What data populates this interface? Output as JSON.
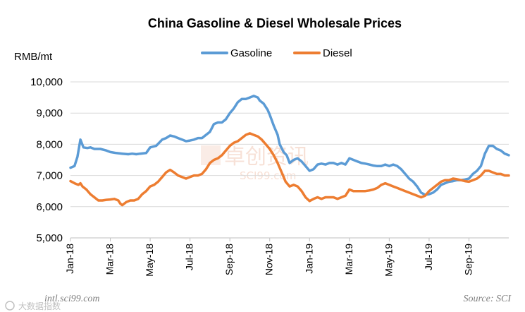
{
  "chart_data": {
    "type": "line",
    "title": "China Gasoline & Diesel Wholesale Prices",
    "ylabel": "RMB/mt",
    "xlabel": "",
    "ylim": [
      5000,
      10000
    ],
    "yticks": [
      "10,000",
      "9,000",
      "8,000",
      "7,000",
      "6,000",
      "5,000"
    ],
    "yticks_values": [
      10000,
      9000,
      8000,
      7000,
      6000,
      5000
    ],
    "x_range": [
      0,
      22
    ],
    "xtick_labels": [
      "Jan-18",
      "Mar-18",
      "May-18",
      "Jul-18",
      "Sep-18",
      "Nov-18",
      "Jan-19",
      "Mar-19",
      "May-19",
      "Jul-19",
      "Sep-19"
    ],
    "xtick_positions": [
      0,
      2,
      4,
      6,
      8,
      10,
      12,
      14,
      16,
      18,
      20
    ],
    "grid": "horizontal",
    "legend_position": "top-center",
    "series": [
      {
        "name": "Gasoline",
        "color": "#5b9bd5",
        "points": [
          [
            0,
            7250
          ],
          [
            0.2,
            7300
          ],
          [
            0.35,
            7600
          ],
          [
            0.5,
            8150
          ],
          [
            0.65,
            7900
          ],
          [
            0.85,
            7880
          ],
          [
            1.0,
            7900
          ],
          [
            1.2,
            7850
          ],
          [
            1.5,
            7850
          ],
          [
            1.8,
            7800
          ],
          [
            2.0,
            7750
          ],
          [
            2.3,
            7720
          ],
          [
            2.6,
            7700
          ],
          [
            2.9,
            7680
          ],
          [
            3.1,
            7700
          ],
          [
            3.3,
            7680
          ],
          [
            3.5,
            7700
          ],
          [
            3.8,
            7720
          ],
          [
            4.0,
            7900
          ],
          [
            4.3,
            7950
          ],
          [
            4.6,
            8150
          ],
          [
            4.8,
            8200
          ],
          [
            5.0,
            8280
          ],
          [
            5.2,
            8250
          ],
          [
            5.4,
            8200
          ],
          [
            5.6,
            8150
          ],
          [
            5.8,
            8100
          ],
          [
            6.0,
            8120
          ],
          [
            6.2,
            8150
          ],
          [
            6.4,
            8200
          ],
          [
            6.6,
            8200
          ],
          [
            6.8,
            8300
          ],
          [
            7.0,
            8400
          ],
          [
            7.2,
            8650
          ],
          [
            7.4,
            8700
          ],
          [
            7.6,
            8700
          ],
          [
            7.8,
            8800
          ],
          [
            8.0,
            9000
          ],
          [
            8.2,
            9150
          ],
          [
            8.4,
            9350
          ],
          [
            8.6,
            9450
          ],
          [
            8.8,
            9450
          ],
          [
            9.0,
            9500
          ],
          [
            9.2,
            9550
          ],
          [
            9.4,
            9500
          ],
          [
            9.5,
            9400
          ],
          [
            9.7,
            9300
          ],
          [
            9.9,
            9100
          ],
          [
            10.0,
            8950
          ],
          [
            10.2,
            8600
          ],
          [
            10.4,
            8300
          ],
          [
            10.5,
            8000
          ],
          [
            10.7,
            7750
          ],
          [
            10.85,
            7650
          ],
          [
            11.0,
            7400
          ],
          [
            11.2,
            7500
          ],
          [
            11.4,
            7550
          ],
          [
            11.6,
            7450
          ],
          [
            11.8,
            7300
          ],
          [
            12.0,
            7150
          ],
          [
            12.2,
            7200
          ],
          [
            12.4,
            7350
          ],
          [
            12.6,
            7380
          ],
          [
            12.8,
            7350
          ],
          [
            13.0,
            7400
          ],
          [
            13.2,
            7400
          ],
          [
            13.4,
            7350
          ],
          [
            13.6,
            7400
          ],
          [
            13.8,
            7350
          ],
          [
            14.0,
            7550
          ],
          [
            14.2,
            7500
          ],
          [
            14.4,
            7450
          ],
          [
            14.6,
            7400
          ],
          [
            14.8,
            7380
          ],
          [
            15.0,
            7350
          ],
          [
            15.2,
            7320
          ],
          [
            15.4,
            7300
          ],
          [
            15.6,
            7300
          ],
          [
            15.8,
            7350
          ],
          [
            16.0,
            7300
          ],
          [
            16.2,
            7350
          ],
          [
            16.4,
            7300
          ],
          [
            16.6,
            7200
          ],
          [
            16.8,
            7050
          ],
          [
            17.0,
            6900
          ],
          [
            17.2,
            6800
          ],
          [
            17.4,
            6650
          ],
          [
            17.6,
            6450
          ],
          [
            17.8,
            6380
          ],
          [
            18.0,
            6400
          ],
          [
            18.2,
            6450
          ],
          [
            18.4,
            6550
          ],
          [
            18.6,
            6700
          ],
          [
            18.8,
            6750
          ],
          [
            19.0,
            6800
          ],
          [
            19.2,
            6820
          ],
          [
            19.4,
            6850
          ],
          [
            19.6,
            6850
          ],
          [
            19.8,
            6870
          ],
          [
            20.0,
            6900
          ],
          [
            20.2,
            7050
          ],
          [
            20.4,
            7150
          ],
          [
            20.6,
            7300
          ],
          [
            20.8,
            7700
          ],
          [
            21.0,
            7950
          ],
          [
            21.2,
            7950
          ],
          [
            21.4,
            7850
          ],
          [
            21.6,
            7800
          ],
          [
            21.8,
            7700
          ],
          [
            22.0,
            7650
          ]
        ]
      },
      {
        "name": "Diesel",
        "color": "#ed7d31",
        "points": [
          [
            0,
            6820
          ],
          [
            0.2,
            6750
          ],
          [
            0.4,
            6700
          ],
          [
            0.5,
            6750
          ],
          [
            0.6,
            6650
          ],
          [
            0.8,
            6550
          ],
          [
            1.0,
            6400
          ],
          [
            1.2,
            6300
          ],
          [
            1.4,
            6200
          ],
          [
            1.6,
            6200
          ],
          [
            1.8,
            6220
          ],
          [
            2.0,
            6230
          ],
          [
            2.2,
            6250
          ],
          [
            2.4,
            6200
          ],
          [
            2.5,
            6100
          ],
          [
            2.6,
            6050
          ],
          [
            2.8,
            6150
          ],
          [
            3.0,
            6200
          ],
          [
            3.2,
            6200
          ],
          [
            3.4,
            6250
          ],
          [
            3.6,
            6400
          ],
          [
            3.8,
            6500
          ],
          [
            4.0,
            6650
          ],
          [
            4.2,
            6700
          ],
          [
            4.4,
            6800
          ],
          [
            4.6,
            6950
          ],
          [
            4.8,
            7100
          ],
          [
            5.0,
            7180
          ],
          [
            5.2,
            7100
          ],
          [
            5.4,
            7000
          ],
          [
            5.6,
            6950
          ],
          [
            5.8,
            6900
          ],
          [
            6.0,
            6950
          ],
          [
            6.2,
            7000
          ],
          [
            6.4,
            7000
          ],
          [
            6.6,
            7050
          ],
          [
            6.8,
            7200
          ],
          [
            7.0,
            7400
          ],
          [
            7.2,
            7500
          ],
          [
            7.4,
            7550
          ],
          [
            7.6,
            7650
          ],
          [
            7.8,
            7800
          ],
          [
            8.0,
            7950
          ],
          [
            8.2,
            8050
          ],
          [
            8.4,
            8100
          ],
          [
            8.6,
            8200
          ],
          [
            8.8,
            8300
          ],
          [
            9.0,
            8350
          ],
          [
            9.2,
            8300
          ],
          [
            9.4,
            8250
          ],
          [
            9.6,
            8150
          ],
          [
            9.8,
            8000
          ],
          [
            10.0,
            7850
          ],
          [
            10.2,
            7650
          ],
          [
            10.4,
            7400
          ],
          [
            10.6,
            7100
          ],
          [
            10.8,
            6800
          ],
          [
            11.0,
            6650
          ],
          [
            11.2,
            6700
          ],
          [
            11.4,
            6650
          ],
          [
            11.6,
            6500
          ],
          [
            11.8,
            6300
          ],
          [
            12.0,
            6180
          ],
          [
            12.2,
            6250
          ],
          [
            12.4,
            6300
          ],
          [
            12.6,
            6250
          ],
          [
            12.8,
            6300
          ],
          [
            13.0,
            6300
          ],
          [
            13.2,
            6300
          ],
          [
            13.4,
            6250
          ],
          [
            13.6,
            6300
          ],
          [
            13.8,
            6350
          ],
          [
            14.0,
            6550
          ],
          [
            14.2,
            6500
          ],
          [
            14.4,
            6500
          ],
          [
            14.6,
            6500
          ],
          [
            14.8,
            6500
          ],
          [
            15.0,
            6520
          ],
          [
            15.2,
            6550
          ],
          [
            15.4,
            6600
          ],
          [
            15.6,
            6700
          ],
          [
            15.8,
            6750
          ],
          [
            16.0,
            6700
          ],
          [
            16.2,
            6650
          ],
          [
            16.4,
            6600
          ],
          [
            16.6,
            6550
          ],
          [
            16.8,
            6500
          ],
          [
            17.0,
            6450
          ],
          [
            17.2,
            6400
          ],
          [
            17.4,
            6350
          ],
          [
            17.6,
            6300
          ],
          [
            17.8,
            6350
          ],
          [
            18.0,
            6500
          ],
          [
            18.2,
            6600
          ],
          [
            18.4,
            6700
          ],
          [
            18.6,
            6800
          ],
          [
            18.8,
            6850
          ],
          [
            19.0,
            6850
          ],
          [
            19.2,
            6900
          ],
          [
            19.4,
            6880
          ],
          [
            19.6,
            6850
          ],
          [
            19.8,
            6820
          ],
          [
            20.0,
            6800
          ],
          [
            20.2,
            6850
          ],
          [
            20.4,
            6900
          ],
          [
            20.6,
            7000
          ],
          [
            20.8,
            7150
          ],
          [
            21.0,
            7150
          ],
          [
            21.2,
            7100
          ],
          [
            21.4,
            7050
          ],
          [
            21.6,
            7050
          ],
          [
            21.8,
            7000
          ],
          [
            22.0,
            7000
          ]
        ]
      }
    ],
    "watermark_cn": "卓创资讯",
    "watermark_en": "SCI99.com"
  },
  "footer": {
    "website": "intl.sci99.com",
    "source": "Source: SCI"
  },
  "badge": {
    "label": "大数据指数"
  }
}
